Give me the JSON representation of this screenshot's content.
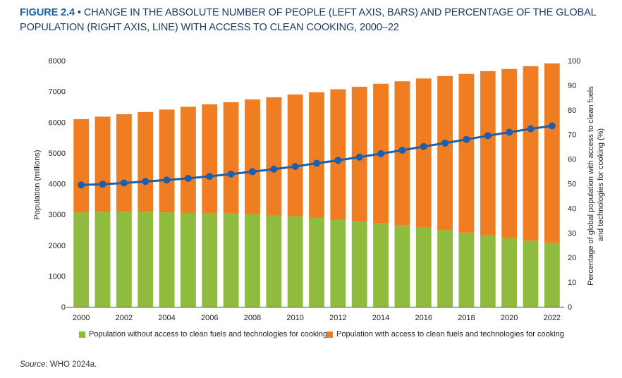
{
  "title": {
    "label": "FIGURE 2.4",
    "separator": "•",
    "text": "CHANGE IN THE ABSOLUTE NUMBER OF PEOPLE (LEFT AXIS, BARS) AND PERCENTAGE OF THE GLOBAL POPULATION (RIGHT AXIS, LINE) WITH ACCESS TO CLEAN COOKING, 2000–22"
  },
  "source": {
    "label": "Source:",
    "text": "WHO 2024a."
  },
  "colors": {
    "without_access": "#8fbc3f",
    "with_access": "#f07d22",
    "line": "#1f5ea8",
    "title": "#1f5fa8"
  },
  "chart_data": {
    "type": "bar",
    "stacked": true,
    "categories": [
      "2000",
      "2001",
      "2002",
      "2003",
      "2004",
      "2005",
      "2006",
      "2007",
      "2008",
      "2009",
      "2010",
      "2011",
      "2012",
      "2013",
      "2014",
      "2015",
      "2016",
      "2017",
      "2018",
      "2019",
      "2020",
      "2021",
      "2022"
    ],
    "x_tick_labels": [
      "2000",
      "2002",
      "2004",
      "2006",
      "2008",
      "2010",
      "2012",
      "2014",
      "2016",
      "2018",
      "2020",
      "2022"
    ],
    "series": [
      {
        "name": "Population without access to clean fuels and technologies for cooking",
        "values": [
          3070,
          3080,
          3080,
          3080,
          3070,
          3060,
          3050,
          3030,
          3010,
          2980,
          2940,
          2890,
          2830,
          2770,
          2710,
          2640,
          2570,
          2490,
          2410,
          2320,
          2230,
          2150,
          2080
        ]
      },
      {
        "name": "Population with access to clean fuels and technologies for cooking",
        "values": [
          3030,
          3100,
          3180,
          3250,
          3340,
          3440,
          3530,
          3620,
          3730,
          3830,
          3960,
          4080,
          4240,
          4380,
          4540,
          4690,
          4850,
          5010,
          5160,
          5340,
          5500,
          5670,
          5830
        ]
      }
    ],
    "line": {
      "axis": "right",
      "values": [
        49.5,
        49.8,
        50.3,
        50.9,
        51.5,
        52.2,
        53.0,
        53.9,
        54.9,
        55.9,
        57.0,
        58.3,
        59.5,
        60.8,
        62.2,
        63.6,
        65.1,
        66.5,
        68.0,
        69.5,
        70.9,
        72.3,
        73.5
      ]
    },
    "ylabel": "Population (millions)",
    "ylim": [
      0,
      8000
    ],
    "yticks": [
      0,
      1000,
      2000,
      3000,
      4000,
      5000,
      6000,
      7000,
      8000
    ],
    "y2label": "Percentage of global population with access to clean fuels and technologies for cooking (%)",
    "y2label_lines": [
      "Percentage of global population with access to clean fuels",
      "and technologies for cooking (%)"
    ],
    "y2lim": [
      0,
      100
    ],
    "y2ticks": [
      0,
      10,
      20,
      30,
      40,
      50,
      60,
      70,
      80,
      90,
      100
    ],
    "grid": false,
    "legend": "bottom"
  }
}
